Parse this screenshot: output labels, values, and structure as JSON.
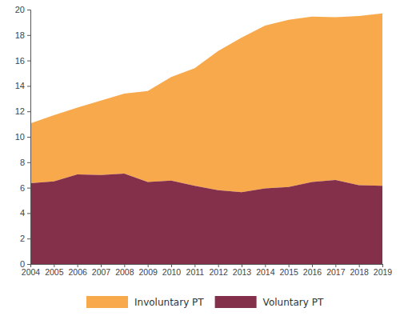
{
  "chart_data": {
    "type": "area",
    "stacked": true,
    "grid": false,
    "legend": "bottom",
    "x": [
      2004,
      2005,
      2006,
      2007,
      2008,
      2009,
      2010,
      2011,
      2012,
      2013,
      2014,
      2015,
      2016,
      2017,
      2018,
      2019
    ],
    "xlim": [
      2004,
      2019
    ],
    "xticks": [
      2004,
      2005,
      2006,
      2007,
      2008,
      2009,
      2010,
      2011,
      2012,
      2013,
      2014,
      2015,
      2016,
      2017,
      2018,
      2019
    ],
    "ylim": [
      0,
      20
    ],
    "yticks": [
      0,
      2,
      4,
      6,
      8,
      10,
      12,
      14,
      16,
      18,
      20
    ],
    "series": [
      {
        "name": "Involuntary PT",
        "color": "#f8a94c",
        "values": [
          4.7,
          5.2,
          5.25,
          5.85,
          6.3,
          7.15,
          8.15,
          9.25,
          10.95,
          12.15,
          12.8,
          13.15,
          13.0,
          12.8,
          13.3,
          13.55
        ]
      },
      {
        "name": "Voluntary PT",
        "color": "#84304a",
        "values": [
          6.35,
          6.5,
          7.05,
          7.0,
          7.1,
          6.45,
          6.55,
          6.15,
          5.8,
          5.65,
          5.95,
          6.05,
          6.45,
          6.6,
          6.2,
          6.15
        ]
      }
    ]
  }
}
